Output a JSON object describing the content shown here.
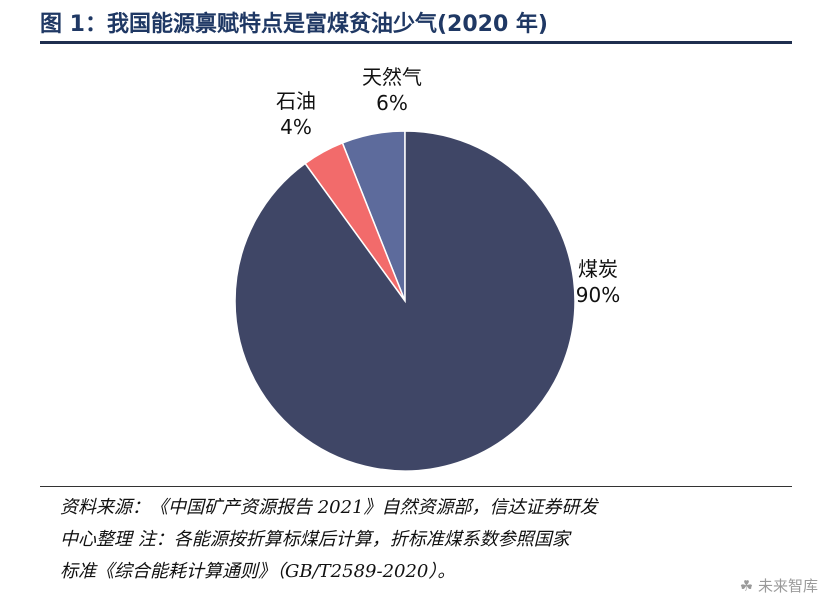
{
  "figure": {
    "title": "图 1：我国能源禀赋特点是富煤贫油少气(2020 年)"
  },
  "chart_data": {
    "type": "pie",
    "title": "",
    "slices": [
      {
        "name": "天然气",
        "label": "6%",
        "value": 6,
        "color": "#5d6b9c"
      },
      {
        "name": "石油",
        "label": "4%",
        "value": 4,
        "color": "#f26b6b"
      },
      {
        "name": "煤炭",
        "label": "90%",
        "value": 90,
        "color": "#3f4666"
      }
    ],
    "start_angle_deg": 0,
    "direction": "counterclockwise",
    "legend": "none"
  },
  "source_note": {
    "lines": [
      "资料来源：《中国矿产资源报告 2021》自然资源部，信达证券研发",
      "中心整理      注：各能源按折算标煤后计算，折标准煤系数参照国家",
      "标准《综合能耗计算通则》（GB/T2589-2020）。"
    ]
  },
  "watermark": "未来智库"
}
